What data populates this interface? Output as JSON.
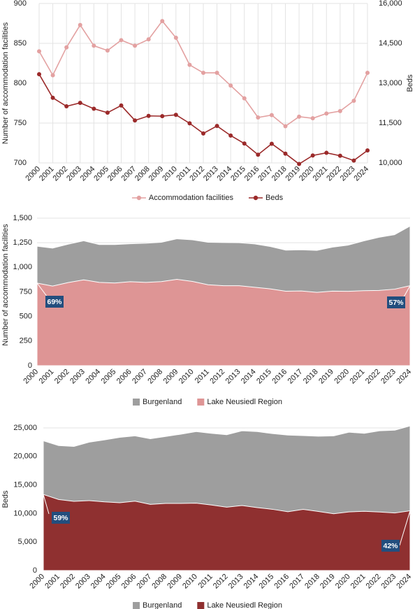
{
  "chart_data": [
    {
      "type": "line",
      "x": [
        "2000",
        "2001",
        "2002",
        "2003",
        "2004",
        "2005",
        "2006",
        "2007",
        "2008",
        "2009",
        "2010",
        "2011",
        "2012",
        "2013",
        "2014",
        "2015",
        "2016",
        "2017",
        "2018",
        "2019",
        "2020",
        "2021",
        "2022",
        "2023",
        "2024"
      ],
      "ylabel": "Number of accommodation facilities",
      "y2label": "Beds",
      "ylim": [
        700,
        900
      ],
      "y2lim": [
        10000,
        16000
      ],
      "yticks": [
        "700",
        "750",
        "800",
        "850",
        "900"
      ],
      "y2ticks": [
        "10,000",
        "11,500",
        "13,000",
        "14,500",
        "16,000"
      ],
      "legend_position": "bottom",
      "series": [
        {
          "name": "Accommodation facilities",
          "axis": "left",
          "color": "#e3a1a1",
          "values": [
            840,
            810,
            845,
            873,
            847,
            841,
            854,
            847,
            855,
            878,
            857,
            823,
            813,
            813,
            797,
            781,
            757,
            760,
            746,
            758,
            756,
            762,
            765,
            778,
            813
          ]
        },
        {
          "name": "Beds",
          "axis": "right",
          "color": "#9b2a2a",
          "values": [
            13340,
            12450,
            12130,
            12260,
            12040,
            11890,
            12160,
            11600,
            11770,
            11760,
            11810,
            11490,
            11110,
            11390,
            11030,
            10730,
            10310,
            10720,
            10350,
            9960,
            10280,
            10380,
            10270,
            10090,
            10470
          ]
        }
      ]
    },
    {
      "type": "area",
      "x": [
        "2000",
        "2001",
        "2002",
        "2003",
        "2004",
        "2005",
        "2006",
        "2007",
        "2008",
        "2009",
        "2010",
        "2011",
        "2012",
        "2013",
        "2014",
        "2015",
        "2016",
        "2017",
        "2018",
        "2019",
        "2020",
        "2021",
        "2022",
        "2023",
        "2024"
      ],
      "ylabel": "Number of accommodation facilities",
      "ylim": [
        0,
        1500
      ],
      "yticks": [
        "0",
        "250",
        "500",
        "750",
        "1,000",
        "1,250",
        "1,500"
      ],
      "legend_position": "bottom",
      "series": [
        {
          "name": "Burgenland",
          "color": "#9e9e9e",
          "values": [
            1215,
            1195,
            1235,
            1270,
            1232,
            1232,
            1240,
            1245,
            1255,
            1290,
            1280,
            1255,
            1252,
            1250,
            1238,
            1212,
            1175,
            1178,
            1172,
            1205,
            1225,
            1268,
            1305,
            1332,
            1420
          ]
        },
        {
          "name": "Lake Neusiedl Region",
          "color": "#de9595",
          "values": [
            840,
            810,
            845,
            873,
            847,
            841,
            854,
            847,
            855,
            878,
            857,
            823,
            813,
            813,
            797,
            781,
            757,
            760,
            746,
            758,
            756,
            762,
            765,
            778,
            813
          ]
        }
      ],
      "annotations": [
        {
          "label": "69%",
          "x_index": 0
        },
        {
          "label": "57%",
          "x_index": 24
        }
      ]
    },
    {
      "type": "area",
      "x": [
        "2000",
        "2001",
        "2002",
        "2003",
        "2004",
        "2005",
        "2006",
        "2007",
        "2008",
        "2009",
        "2010",
        "2011",
        "2012",
        "2013",
        "2014",
        "2015",
        "2016",
        "2017",
        "2018",
        "2019",
        "2020",
        "2021",
        "2022",
        "2023",
        "2024"
      ],
      "ylabel": "Beds",
      "ylim": [
        0,
        25000
      ],
      "yticks": [
        "0",
        "5,000",
        "10,000",
        "15,000",
        "20,000",
        "25,000"
      ],
      "legend_position": "bottom",
      "series": [
        {
          "name": "Burgenland",
          "color": "#9e9e9e",
          "values": [
            22750,
            21900,
            21750,
            22500,
            22900,
            23350,
            23600,
            23100,
            23500,
            23900,
            24350,
            24050,
            23800,
            24500,
            24350,
            24000,
            23750,
            23650,
            23550,
            23600,
            24250,
            24050,
            24500,
            24600,
            25350
          ]
        },
        {
          "name": "Lake Neusiedl Region",
          "color": "#8f3030",
          "values": [
            13340,
            12450,
            12130,
            12260,
            12040,
            11890,
            12160,
            11600,
            11770,
            11760,
            11810,
            11490,
            11110,
            11390,
            11030,
            10730,
            10310,
            10720,
            10350,
            9960,
            10280,
            10380,
            10270,
            10090,
            10470
          ]
        }
      ],
      "annotations": [
        {
          "label": "59%",
          "x_index": 0
        },
        {
          "label": "42%",
          "x_index": 24
        }
      ]
    }
  ]
}
